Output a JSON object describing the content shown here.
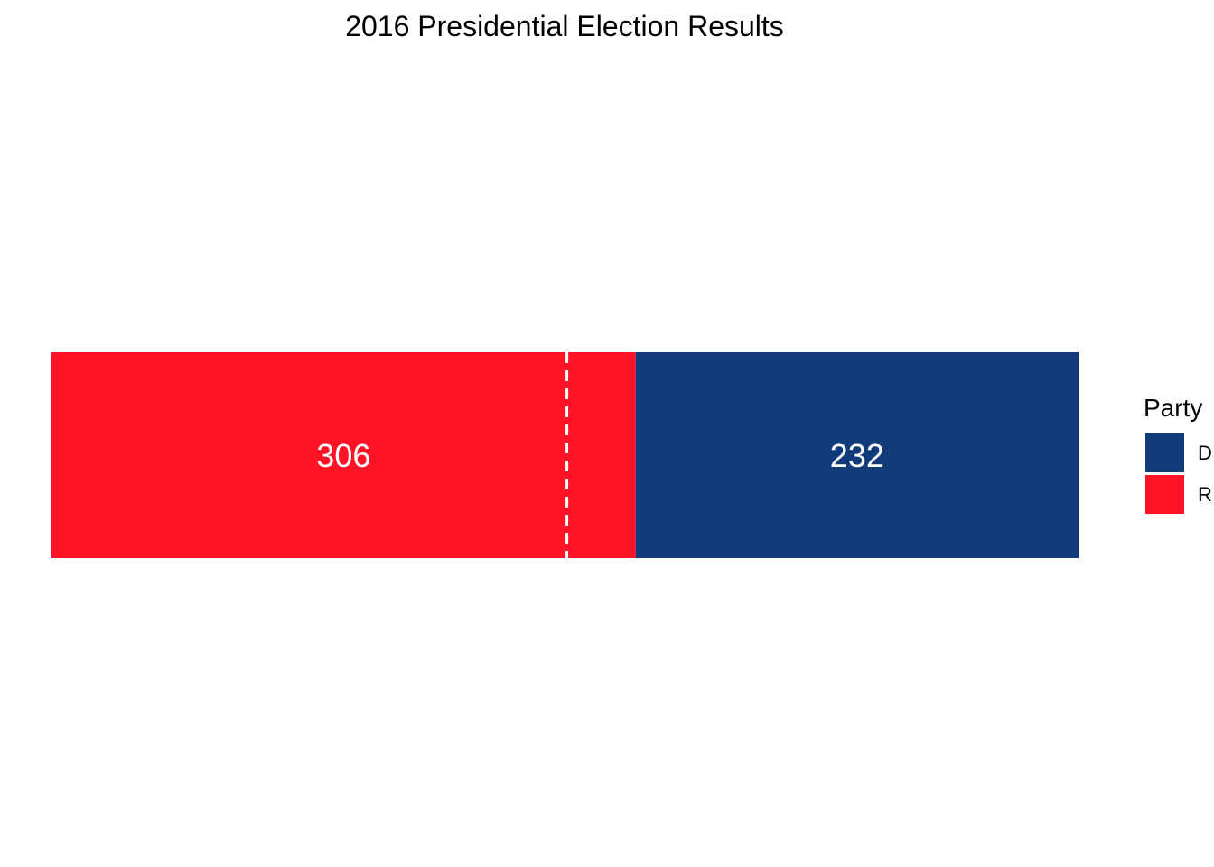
{
  "chart_data": {
    "type": "bar",
    "orientation": "horizontal-stacked",
    "title": "2016 Presidential Election Results",
    "xlabel": "",
    "ylabel": "",
    "xlim": [
      0,
      538
    ],
    "grid": false,
    "legend_position": "right",
    "legend_title": "Party",
    "reference_line": {
      "value": 270,
      "style": "dashed",
      "color": "#ffffff"
    },
    "series": [
      {
        "name": "R",
        "legend_label": "R",
        "value": 306,
        "color": "#fc1426"
      },
      {
        "name": "D",
        "legend_label": "D",
        "value": 232,
        "color": "#123b79"
      }
    ],
    "legend_order": [
      "D",
      "R"
    ]
  }
}
